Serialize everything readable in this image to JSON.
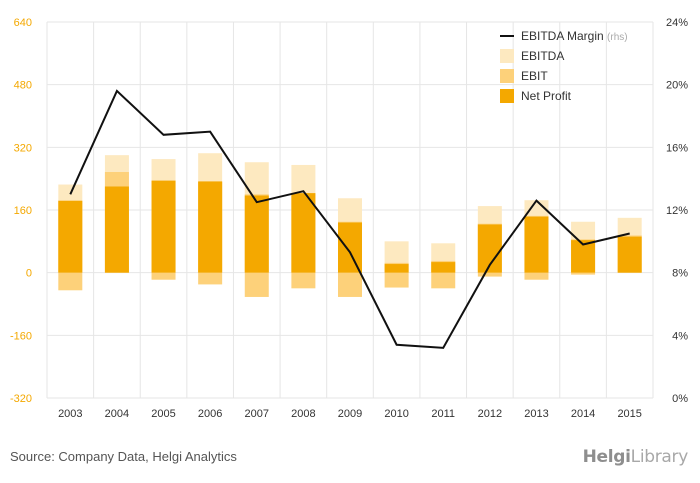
{
  "chart_data": {
    "type": "bar",
    "categories": [
      "2003",
      "2004",
      "2005",
      "2006",
      "2007",
      "2008",
      "2009",
      "2010",
      "2011",
      "2012",
      "2013",
      "2014",
      "2015"
    ],
    "series": [
      {
        "name": "EBITDA",
        "type": "bar",
        "color": "#fde9c0",
        "pos": [
          225,
          300,
          290,
          305,
          282,
          275,
          190,
          80,
          75,
          170,
          185,
          130,
          140
        ],
        "neg": [
          0,
          0,
          0,
          0,
          0,
          0,
          0,
          0,
          0,
          0,
          0,
          0,
          0
        ]
      },
      {
        "name": "EBIT",
        "type": "bar",
        "color": "#fdd17a",
        "pos": [
          185,
          257,
          235,
          232,
          200,
          203,
          130,
          25,
          30,
          125,
          145,
          85,
          95
        ],
        "neg": [
          -45,
          0,
          -18,
          -30,
          -62,
          -40,
          -62,
          -38,
          -40,
          -10,
          -18,
          -5,
          0
        ]
      },
      {
        "name": "Net Profit",
        "type": "bar",
        "color": "#f4a800",
        "pos": [
          183,
          220,
          235,
          233,
          197,
          203,
          128,
          22,
          27,
          123,
          143,
          83,
          92
        ],
        "neg": [
          0,
          0,
          0,
          0,
          0,
          0,
          0,
          0,
          0,
          0,
          0,
          0,
          0
        ]
      },
      {
        "name": "EBITDA Margin",
        "legend_suffix": "(rhs)",
        "type": "line",
        "axis": "right",
        "color": "#111111",
        "values": [
          13.0,
          19.6,
          16.8,
          17.0,
          12.5,
          13.2,
          9.3,
          3.4,
          3.2,
          8.5,
          12.6,
          9.8,
          10.5
        ]
      }
    ],
    "left_axis": {
      "min": -320,
      "max": 640,
      "ticks": [
        640,
        480,
        320,
        160,
        0,
        -160,
        -320
      ],
      "tick_color": "#f4a800"
    },
    "right_axis": {
      "min": 0,
      "max": 24,
      "ticks": [
        "24%",
        "20%",
        "16%",
        "12%",
        "8%",
        "4%",
        "0%"
      ]
    },
    "grid": true,
    "legend_position": "top-right",
    "colors": {
      "text": "#333333",
      "grid": "#e6e6e6"
    }
  },
  "footer": {
    "source": "Source: Company Data, Helgi Analytics",
    "logo_helgi": "Helgi",
    "logo_library": "Library"
  }
}
